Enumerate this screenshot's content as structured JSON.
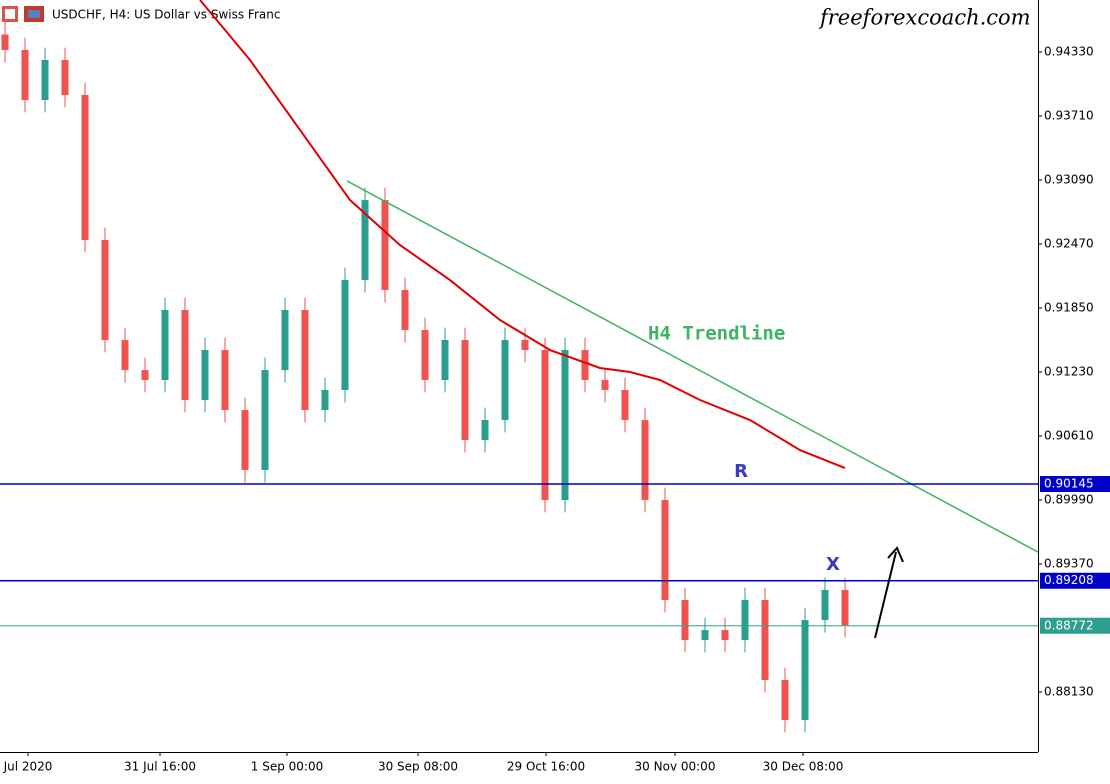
{
  "chart_data": {
    "type": "candlestick",
    "title": "USDCHF, H4:  US Dollar vs Swiss Franc",
    "watermark": "freeforexcoach.com",
    "xlim": [
      0,
      1038
    ],
    "ylim": [
      0.87549,
      0.94834
    ],
    "xticks": [
      {
        "value": 28,
        "label": "Jul 2020"
      },
      {
        "value": 160,
        "label": "31 Jul 16:00"
      },
      {
        "value": 287,
        "label": "1 Sep 00:00"
      },
      {
        "value": 418,
        "label": "30 Sep 08:00"
      },
      {
        "value": 546,
        "label": "29 Oct 16:00"
      },
      {
        "value": 675,
        "label": "30 Nov 00:00"
      },
      {
        "value": 803,
        "label": "30 Dec 08:00"
      }
    ],
    "yticks": [
      {
        "value": 0.9433,
        "label": "0.94330"
      },
      {
        "value": 0.9371,
        "label": "0.93710"
      },
      {
        "value": 0.9309,
        "label": "0.93090"
      },
      {
        "value": 0.9247,
        "label": "0.92470"
      },
      {
        "value": 0.9185,
        "label": "0.91850"
      },
      {
        "value": 0.9123,
        "label": "0.91230"
      },
      {
        "value": 0.9061,
        "label": "0.90610"
      },
      {
        "value": 0.8999,
        "label": "0.89990"
      },
      {
        "value": 0.8937,
        "label": "0.89370"
      },
      {
        "value": 0.8813,
        "label": "0.88130"
      }
    ],
    "up_color": "#2a9d8f",
    "down_color": "#ef5350",
    "x": [
      5,
      25,
      45,
      65,
      85,
      105,
      125,
      145,
      165,
      185,
      205,
      225,
      245,
      265,
      285,
      305,
      325,
      345,
      365,
      385,
      405,
      425,
      445,
      465,
      485,
      505,
      525,
      545,
      565,
      585,
      605,
      625,
      645,
      665,
      685,
      705,
      725,
      745,
      765,
      785,
      805,
      825,
      845
    ],
    "open": [
      0.945,
      0.9435,
      0.93865,
      0.94253,
      0.93914,
      0.92509,
      0.9154,
      0.91249,
      0.91153,
      0.91831,
      0.90959,
      0.91443,
      0.90862,
      0.90281,
      0.91249,
      0.91831,
      0.90862,
      0.91056,
      0.92121,
      0.92896,
      0.92025,
      0.91637,
      0.91153,
      0.9154,
      0.90571,
      0.90765,
      0.9154,
      0.91443,
      0.8999,
      0.91443,
      0.91153,
      0.91056,
      0.90765,
      0.8999,
      0.89021,
      0.88634,
      0.8873,
      0.88634,
      0.89021,
      0.88246,
      0.87859,
      0.88827,
      0.89118
    ],
    "high": [
      0.9462,
      0.9447,
      0.94373,
      0.94373,
      0.94034,
      0.92629,
      0.9166,
      0.91369,
      0.91951,
      0.91951,
      0.91563,
      0.91563,
      0.90982,
      0.91369,
      0.91951,
      0.91951,
      0.91176,
      0.92241,
      0.93016,
      0.93016,
      0.92145,
      0.91757,
      0.9166,
      0.9166,
      0.90885,
      0.9166,
      0.9166,
      0.91563,
      0.91563,
      0.91563,
      0.91273,
      0.91176,
      0.90885,
      0.9011,
      0.89141,
      0.8885,
      0.8885,
      0.89141,
      0.89141,
      0.88366,
      0.88947,
      0.89238,
      0.89238
    ],
    "low": [
      0.9423,
      0.93745,
      0.93745,
      0.93794,
      0.92389,
      0.9142,
      0.91129,
      0.91033,
      0.91033,
      0.90839,
      0.90839,
      0.90742,
      0.90161,
      0.90161,
      0.91129,
      0.90742,
      0.90742,
      0.90936,
      0.92001,
      0.91905,
      0.91517,
      0.91033,
      0.91033,
      0.90451,
      0.90451,
      0.90645,
      0.91323,
      0.8987,
      0.8987,
      0.91033,
      0.90936,
      0.90645,
      0.8987,
      0.88901,
      0.88514,
      0.88514,
      0.88514,
      0.88514,
      0.88126,
      0.87739,
      0.87739,
      0.88707,
      0.88659
    ],
    "close": [
      0.9435,
      0.93865,
      0.94253,
      0.93914,
      0.92509,
      0.9154,
      0.91249,
      0.91153,
      0.91831,
      0.90959,
      0.91443,
      0.90862,
      0.90281,
      0.91249,
      0.91831,
      0.90862,
      0.91056,
      0.92121,
      0.92896,
      0.92025,
      0.91637,
      0.91153,
      0.9154,
      0.90571,
      0.90765,
      0.9154,
      0.91443,
      0.8999,
      0.91443,
      0.91153,
      0.91056,
      0.90765,
      0.8999,
      0.89021,
      0.88634,
      0.8873,
      0.88634,
      0.89021,
      0.88246,
      0.87859,
      0.88827,
      0.89118,
      0.88779
    ],
    "moving_average": {
      "color": "#e00000",
      "x": [
        200,
        250,
        300,
        350,
        400,
        450,
        500,
        550,
        600,
        630,
        660,
        700,
        750,
        800,
        845
      ],
      "values": [
        0.94834,
        0.94253,
        0.93575,
        0.92896,
        0.9246,
        0.92121,
        0.91734,
        0.91443,
        0.91269,
        0.9123,
        0.91153,
        0.90959,
        0.90765,
        0.90474,
        0.903
      ]
    },
    "trendline": {
      "name": "H4 Trendline",
      "color": "#3cb460",
      "x": [
        347,
        1038
      ],
      "values": [
        0.93081,
        0.89486
      ]
    },
    "levels": [
      {
        "value": 0.90145,
        "label": "0.90145",
        "color": "#0000c8"
      },
      {
        "value": 0.89208,
        "label": "0.89208",
        "color": "#0000c8"
      },
      {
        "value": 0.88772,
        "label": "0.88772",
        "color": "#2e9e8e"
      }
    ],
    "annotations": [
      {
        "text": "R",
        "x": 741,
        "y": 0.90263
      },
      {
        "text": "X",
        "x": 833,
        "y": 0.8936
      }
    ]
  }
}
